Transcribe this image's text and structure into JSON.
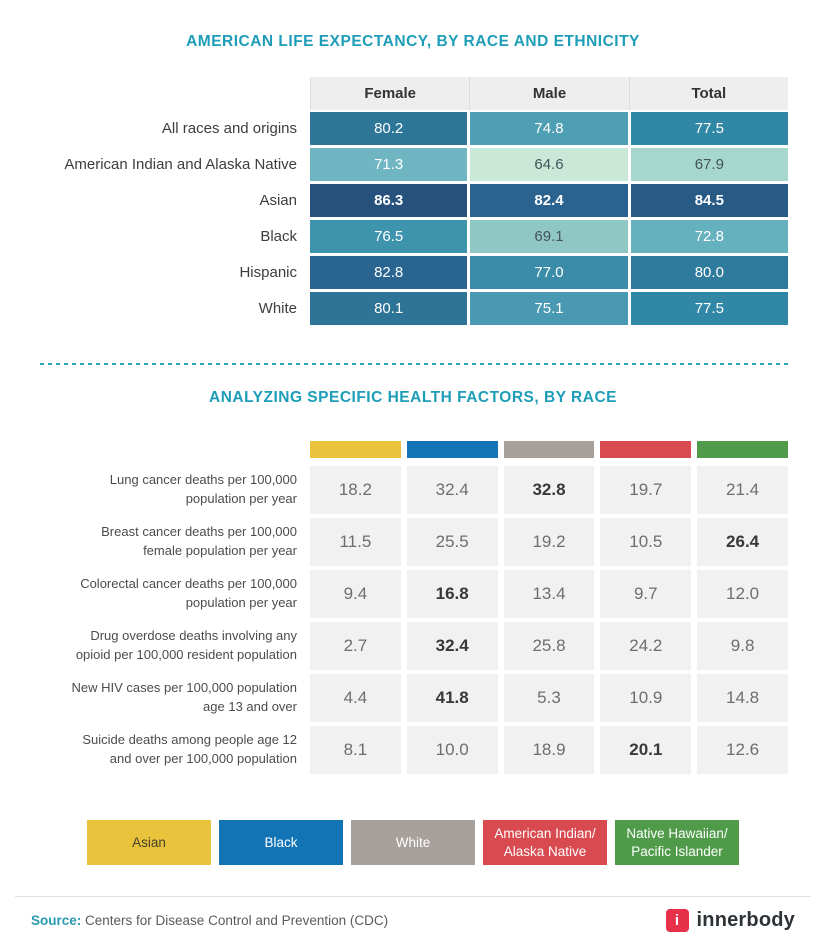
{
  "page": {
    "background": "#ffffff",
    "accent_teal": "#1d9db8",
    "title1": "AMERICAN LIFE EXPECTANCY, BY RACE AND ETHNICITY",
    "title2": "ANALYZING SPECIFIC HEALTH FACTORS, BY RACE"
  },
  "chart_data": [
    {
      "type": "heatmap",
      "title": "AMERICAN LIFE EXPECTANCY, BY RACE AND ETHNICITY",
      "columns": [
        "Female",
        "Male",
        "Total"
      ],
      "categories": [
        "All races and origins",
        "American Indian and Alaska Native",
        "Asian",
        "Black",
        "Hispanic",
        "White"
      ],
      "series": [
        {
          "name": "All races and origins",
          "values": [
            80.2,
            74.8,
            77.5
          ]
        },
        {
          "name": "American Indian and Alaska Native",
          "values": [
            71.3,
            64.6,
            67.9
          ]
        },
        {
          "name": "Asian",
          "values": [
            86.3,
            82.4,
            84.5
          ]
        },
        {
          "name": "Black",
          "values": [
            76.5,
            69.1,
            72.8
          ]
        },
        {
          "name": "Hispanic",
          "values": [
            82.8,
            77.0,
            80.0
          ]
        },
        {
          "name": "White",
          "values": [
            80.1,
            75.1,
            77.5
          ]
        }
      ],
      "highlighted_row": "Asian",
      "color_scale": "darker teal-navy = higher life expectancy, pale mint = lower"
    },
    {
      "type": "table",
      "title": "ANALYZING SPECIFIC HEALTH FACTORS, BY RACE",
      "columns": [
        "Asian",
        "Black",
        "White",
        "American Indian/Alaska Native",
        "Native Hawaiian/Pacific Islander"
      ],
      "column_colors": [
        "#e9c33c",
        "#1273b5",
        "#a7a09b",
        "#d84a50",
        "#4f9b49"
      ],
      "categories": [
        "Lung cancer deaths per 100,000 population per year",
        "Breast cancer deaths per 100,000 female population per year",
        "Colorectal cancer deaths per 100,000 population per year",
        "Drug overdose deaths involving any opioid per 100,000 resident population",
        "New HIV cases per 100,000 population age 13 and over",
        "Suicide deaths among people age 12 and over per 100,000 population"
      ],
      "series": [
        {
          "name": "Lung cancer deaths per 100,000 population per year",
          "values": [
            18.2,
            32.4,
            32.8,
            19.7,
            21.4
          ],
          "max_highlighted": 32.8
        },
        {
          "name": "Breast cancer deaths per 100,000 female population per year",
          "values": [
            11.5,
            25.5,
            19.2,
            10.5,
            26.4
          ],
          "max_highlighted": 26.4
        },
        {
          "name": "Colorectal cancer deaths per 100,000 population per year",
          "values": [
            9.4,
            16.8,
            13.4,
            9.7,
            12.0
          ],
          "max_highlighted": 16.8
        },
        {
          "name": "Drug overdose deaths involving any opioid per 100,000 resident population",
          "values": [
            2.7,
            32.4,
            25.8,
            24.2,
            9.8
          ],
          "max_highlighted": 32.4
        },
        {
          "name": "New HIV cases per 100,000 population age 13 and over",
          "values": [
            4.4,
            41.8,
            5.3,
            10.9,
            14.8
          ],
          "max_highlighted": 41.8
        },
        {
          "name": "Suicide deaths among people age 12 and over per 100,000 population",
          "values": [
            8.1,
            10.0,
            18.9,
            20.1,
            12.6
          ],
          "max_highlighted": 20.1
        }
      ]
    }
  ],
  "life_table": {
    "columns": [
      "Female",
      "Male",
      "Total"
    ],
    "header_bg": "#efeeee",
    "rows": [
      {
        "label": "All races and origins",
        "bold": false,
        "cells": [
          {
            "v": "80.2",
            "bg": "#2d7698",
            "fg": "#ffffff"
          },
          {
            "v": "74.8",
            "bg": "#4f9fb4",
            "fg": "#ffffff"
          },
          {
            "v": "77.5",
            "bg": "#3187a6",
            "fg": "#ffffff"
          }
        ]
      },
      {
        "label": "American Indian and Alaska Native",
        "bold": false,
        "cells": [
          {
            "v": "71.3",
            "bg": "#6fb6c2",
            "fg": "#ffffff"
          },
          {
            "v": "64.6",
            "bg": "#c9e8d8",
            "fg": "#43545c"
          },
          {
            "v": "67.9",
            "bg": "#a6d7cc",
            "fg": "#43545c"
          }
        ]
      },
      {
        "label": "Asian",
        "bold": true,
        "cells": [
          {
            "v": "86.3",
            "bg": "#27517d",
            "fg": "#ffffff"
          },
          {
            "v": "82.4",
            "bg": "#2a6390",
            "fg": "#ffffff"
          },
          {
            "v": "84.5",
            "bg": "#285a86",
            "fg": "#ffffff"
          }
        ]
      },
      {
        "label": "Black",
        "bold": false,
        "cells": [
          {
            "v": "76.5",
            "bg": "#3e93ad",
            "fg": "#ffffff"
          },
          {
            "v": "69.1",
            "bg": "#8fc7c5",
            "fg": "#43545c"
          },
          {
            "v": "72.8",
            "bg": "#65b1bd",
            "fg": "#ffffff"
          }
        ]
      },
      {
        "label": "Hispanic",
        "bold": false,
        "cells": [
          {
            "v": "82.8",
            "bg": "#2a6591",
            "fg": "#ffffff"
          },
          {
            "v": "77.0",
            "bg": "#3a8ca9",
            "fg": "#ffffff"
          },
          {
            "v": "80.0",
            "bg": "#2f7b9d",
            "fg": "#ffffff"
          }
        ]
      },
      {
        "label": "White",
        "bold": false,
        "cells": [
          {
            "v": "80.1",
            "bg": "#2d7496",
            "fg": "#ffffff"
          },
          {
            "v": "75.1",
            "bg": "#4899b1",
            "fg": "#ffffff"
          },
          {
            "v": "77.5",
            "bg": "#3187a6",
            "fg": "#ffffff"
          }
        ]
      }
    ]
  },
  "health_table": {
    "cell_bg": "#f1f1f1",
    "column_colors": [
      "#e9c33c",
      "#1273b5",
      "#a7a09b",
      "#d84a50",
      "#4f9b49"
    ],
    "rows": [
      {
        "label": [
          "Lung cancer deaths per 100,000",
          "population per year"
        ],
        "values": [
          "18.2",
          "32.4",
          "32.8",
          "19.7",
          "21.4"
        ],
        "bold_index": 2
      },
      {
        "label": [
          "Breast cancer deaths per 100,000",
          "female population per year"
        ],
        "values": [
          "11.5",
          "25.5",
          "19.2",
          "10.5",
          "26.4"
        ],
        "bold_index": 4
      },
      {
        "label": [
          "Colorectal cancer deaths per 100,000",
          "population per year"
        ],
        "values": [
          "9.4",
          "16.8",
          "13.4",
          "9.7",
          "12.0"
        ],
        "bold_index": 1
      },
      {
        "label": [
          "Drug overdose deaths involving any",
          "opioid per 100,000 resident population"
        ],
        "values": [
          "2.7",
          "32.4",
          "25.8",
          "24.2",
          "9.8"
        ],
        "bold_index": 1
      },
      {
        "label": [
          "New HIV cases per 100,000 population",
          "age 13 and over"
        ],
        "values": [
          "4.4",
          "41.8",
          "5.3",
          "10.9",
          "14.8"
        ],
        "bold_index": 1
      },
      {
        "label": [
          "Suicide deaths among people age 12",
          "and over per 100,000 population"
        ],
        "values": [
          "8.1",
          "10.0",
          "18.9",
          "20.1",
          "12.6"
        ],
        "bold_index": 3
      }
    ]
  },
  "legend": [
    {
      "label": [
        "Asian"
      ],
      "color": "#e9c33c",
      "text": "#46422a"
    },
    {
      "label": [
        "Black"
      ],
      "color": "#1273b5",
      "text": "#ffffff"
    },
    {
      "label": [
        "White"
      ],
      "color": "#a7a09b",
      "text": "#ffffff"
    },
    {
      "label": [
        "American Indian/",
        "Alaska Native"
      ],
      "color": "#d84a50",
      "text": "#ffffff"
    },
    {
      "label": [
        "Native Hawaiian/",
        "Pacific Islander"
      ],
      "color": "#4f9b49",
      "text": "#ffffff"
    }
  ],
  "footer": {
    "source_label": "Source:",
    "source_text": " Centers for Disease Control and Prevention (CDC)",
    "brand": "innerbody",
    "brand_letter": "i",
    "brand_color": "#e73049"
  }
}
